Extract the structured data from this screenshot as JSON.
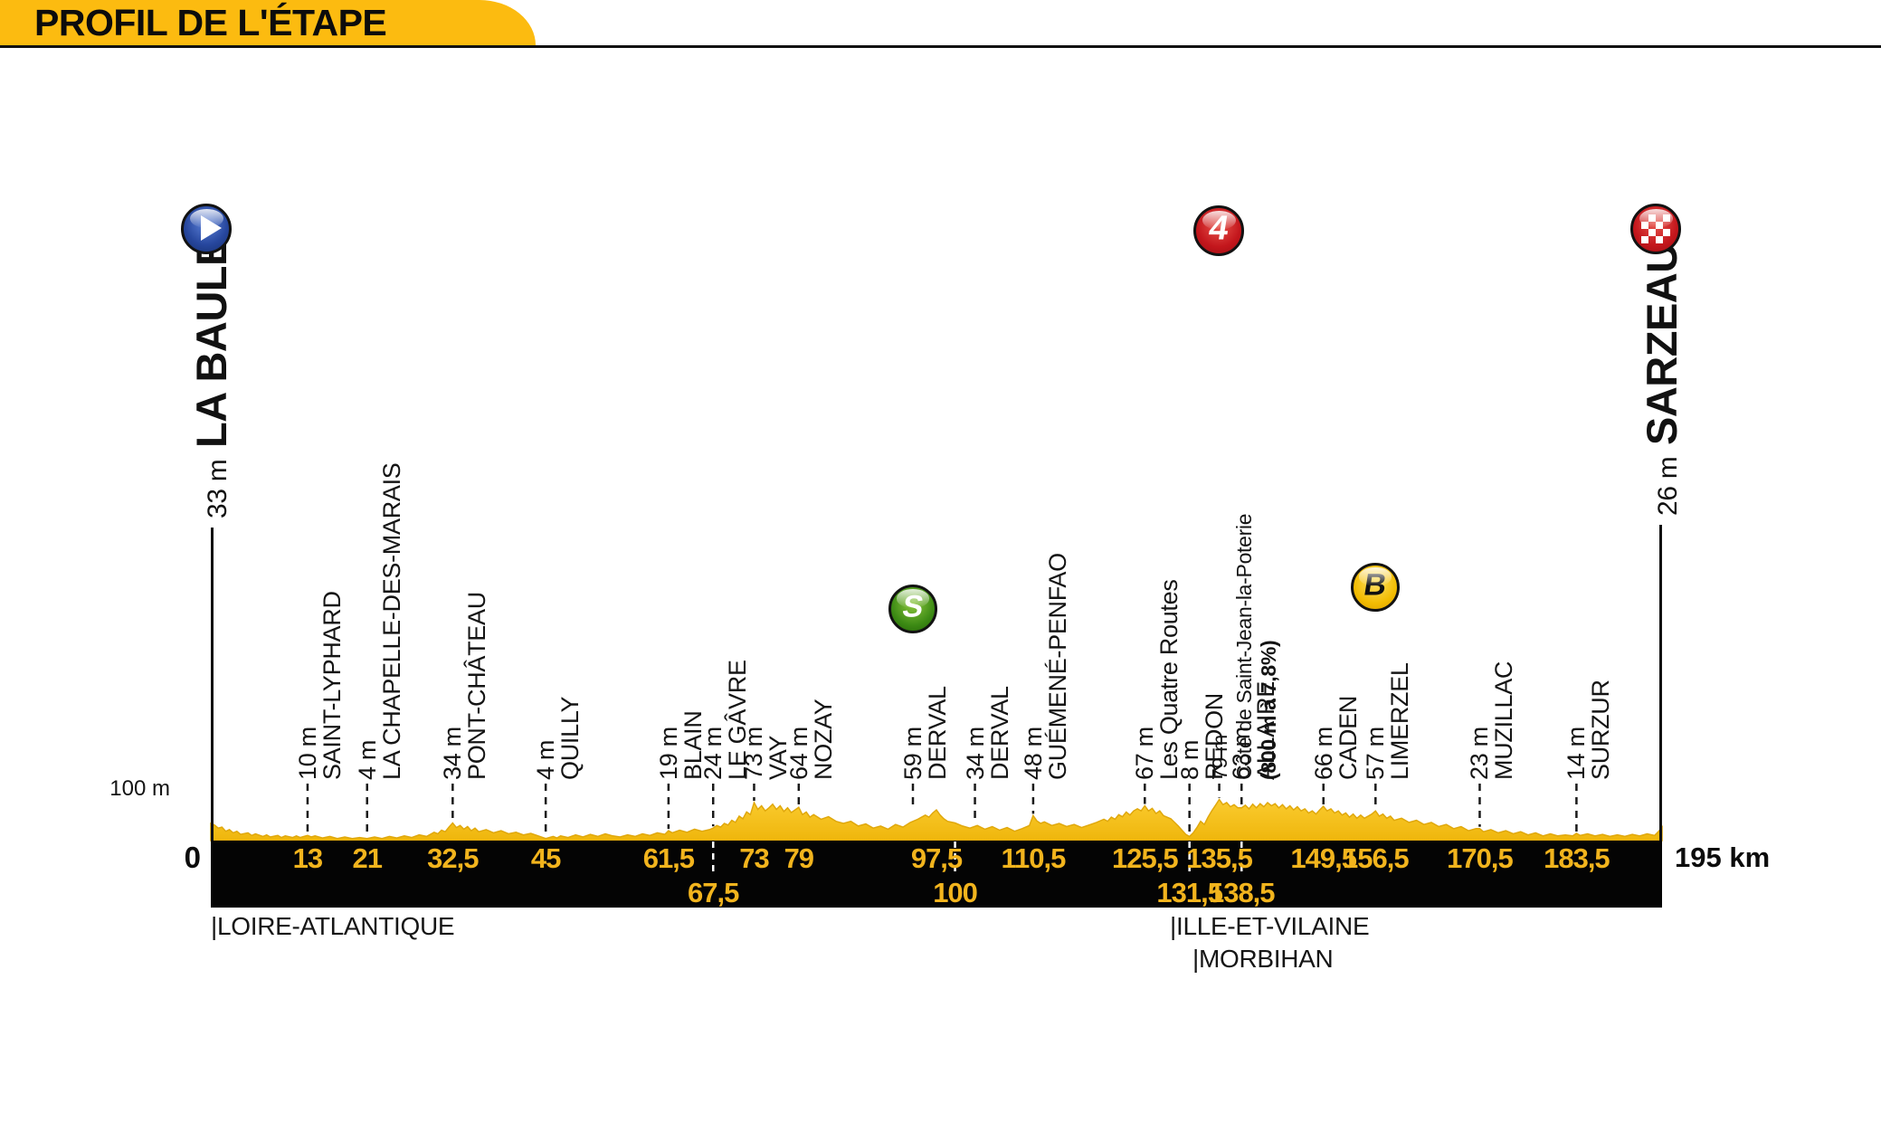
{
  "header": {
    "title": "PROFIL DE L'ÉTAPE"
  },
  "stage": {
    "start": {
      "altitude": "33 m",
      "name": "LA BAULE"
    },
    "finish": {
      "altitude": "26 m",
      "name": "SARZEAU"
    },
    "start_km_label": "0",
    "finish_km_label": "195 km",
    "elevation_scale_label": "100 m"
  },
  "icons": {
    "start": "play-icon",
    "finish": "checkered-flag-icon",
    "cat4_label": "4",
    "sprint_letter": "S",
    "bonus_letter": "B"
  },
  "departments": [
    {
      "label": "|LOIRE-ATLANTIQUE"
    },
    {
      "label": "|ILLE-ET-VILAINE"
    },
    {
      "label": "|MORBIHAN"
    }
  ],
  "colors": {
    "banner_yellow": "#FCBB10",
    "profile_gold": "#F7C11E",
    "km_text_yellow": "#F2B41D",
    "cat4_red": "#C3161C",
    "sprint_green": "#3C8A14",
    "bonus_yellow": "#F2BC02",
    "start_blue": "#27479E",
    "bar_black": "#040404"
  },
  "chart_data": {
    "type": "area",
    "title": "PROFIL DE L'ÉTAPE",
    "x_unit": "km",
    "y_unit": "m",
    "x_range": [
      0,
      195
    ],
    "total_distance_km": 195,
    "elevation_scale": {
      "label": "100 m",
      "meters": 100
    },
    "start": {
      "km": 0,
      "name": "LA BAULE",
      "elevation_m": 33
    },
    "finish": {
      "km": 195,
      "name": "SARZEAU",
      "elevation_m": 26
    },
    "waypoints": [
      {
        "km": 13,
        "km_label": "13",
        "row": 1,
        "altitude": "10 m",
        "elevation_m": 10,
        "name": "SAINT-LYPHARD"
      },
      {
        "km": 21,
        "km_label": "21",
        "row": 1,
        "altitude": "4 m",
        "elevation_m": 4,
        "name": "LA CHAPELLE-DES-MARAIS"
      },
      {
        "km": 32.5,
        "km_label": "32,5",
        "row": 1,
        "altitude": "34 m",
        "elevation_m": 34,
        "name": "PONT-CHÂTEAU"
      },
      {
        "km": 45,
        "km_label": "45",
        "row": 1,
        "altitude": "4 m",
        "elevation_m": 4,
        "name": "QUILLY"
      },
      {
        "km": 61.5,
        "km_label": "61,5",
        "row": 1,
        "altitude": "19 m",
        "elevation_m": 19,
        "name": "BLAIN"
      },
      {
        "km": 67.5,
        "km_label": "67,5",
        "row": 2,
        "altitude": "24 m",
        "elevation_m": 24,
        "name": "LE GÂVRE"
      },
      {
        "km": 73,
        "km_label": "73",
        "row": 1,
        "altitude": "73 m",
        "elevation_m": 73,
        "name": "VAY"
      },
      {
        "km": 79,
        "km_label": "79",
        "row": 1,
        "altitude": "64 m",
        "elevation_m": 64,
        "name": "NOZAY"
      },
      {
        "km": 97.5,
        "km_label": "97,5",
        "row": 1,
        "altitude": "59 m",
        "elevation_m": 59,
        "name": "DERVAL",
        "icon": "sprint",
        "label_dx": -26
      },
      {
        "km": 100,
        "km_label": "100",
        "row": 2,
        "altitude": "34 m",
        "elevation_m": 34,
        "name": "DERVAL",
        "label_dx": 22
      },
      {
        "km": 110.5,
        "km_label": "110,5",
        "row": 1,
        "altitude": "48 m",
        "elevation_m": 48,
        "name": "GUÉMENÉ-PENFAO"
      },
      {
        "km": 125.5,
        "km_label": "125,5",
        "row": 1,
        "altitude": "67 m",
        "elevation_m": 67,
        "name": "Les Quatre Routes"
      },
      {
        "km": 131.5,
        "km_label": "131,5",
        "row": 2,
        "altitude": "8 m",
        "elevation_m": 8,
        "name": "REDON"
      },
      {
        "km": 135.5,
        "km_label": "135,5",
        "row": 1,
        "altitude": "79 m",
        "elevation_m": 79,
        "name": "Côte de Saint-Jean-la-Poterie",
        "name_bold": " (800 m à 7,8%)",
        "icon": "cat4"
      },
      {
        "km": 138.5,
        "km_label": "138,5",
        "row": 2,
        "altitude": "63 m",
        "elevation_m": 63,
        "name": "ALLAIRE"
      },
      {
        "km": 149.5,
        "km_label": "149,5",
        "row": 1,
        "altitude": "66 m",
        "elevation_m": 66,
        "name": "CADEN"
      },
      {
        "km": 156.5,
        "km_label": "156,5",
        "row": 1,
        "altitude": "57 m",
        "elevation_m": 57,
        "name": "LIMERZEL",
        "icon": "bonus"
      },
      {
        "km": 170.5,
        "km_label": "170,5",
        "row": 1,
        "altitude": "23 m",
        "elevation_m": 23,
        "name": "MUZILLAC"
      },
      {
        "km": 183.5,
        "km_label": "183,5",
        "row": 1,
        "altitude": "14 m",
        "elevation_m": 14,
        "name": "SURZUR"
      }
    ],
    "profile_points": [
      [
        0,
        33
      ],
      [
        0.5,
        30
      ],
      [
        1,
        24
      ],
      [
        1.5,
        26
      ],
      [
        2,
        18
      ],
      [
        2.5,
        21
      ],
      [
        3,
        15
      ],
      [
        3.5,
        18
      ],
      [
        4,
        12
      ],
      [
        5,
        15
      ],
      [
        5.5,
        10
      ],
      [
        6,
        13
      ],
      [
        7,
        8
      ],
      [
        7.5,
        11
      ],
      [
        8,
        7
      ],
      [
        9,
        10
      ],
      [
        9.5,
        6
      ],
      [
        10,
        9
      ],
      [
        11,
        6
      ],
      [
        11.5,
        9
      ],
      [
        12,
        6
      ],
      [
        13,
        10
      ],
      [
        13.5,
        7
      ],
      [
        14,
        9
      ],
      [
        15,
        5
      ],
      [
        16,
        8
      ],
      [
        17,
        4
      ],
      [
        18,
        7
      ],
      [
        19,
        4
      ],
      [
        20,
        6
      ],
      [
        21,
        4
      ],
      [
        22,
        7
      ],
      [
        23,
        4
      ],
      [
        24,
        8
      ],
      [
        25,
        5
      ],
      [
        26,
        9
      ],
      [
        27,
        6
      ],
      [
        28,
        11
      ],
      [
        29,
        8
      ],
      [
        30,
        16
      ],
      [
        30.5,
        13
      ],
      [
        31,
        20
      ],
      [
        31.5,
        17
      ],
      [
        32,
        26
      ],
      [
        32.5,
        34
      ],
      [
        33,
        25
      ],
      [
        33.5,
        29
      ],
      [
        34,
        22
      ],
      [
        34.5,
        27
      ],
      [
        35,
        19
      ],
      [
        35.5,
        24
      ],
      [
        36,
        17
      ],
      [
        37,
        21
      ],
      [
        38,
        15
      ],
      [
        39,
        19
      ],
      [
        40,
        13
      ],
      [
        41,
        16
      ],
      [
        42,
        11
      ],
      [
        43,
        14
      ],
      [
        44,
        9
      ],
      [
        45,
        4
      ],
      [
        46,
        8
      ],
      [
        46.5,
        5
      ],
      [
        47,
        9
      ],
      [
        48,
        6
      ],
      [
        49,
        11
      ],
      [
        50,
        7
      ],
      [
        51,
        12
      ],
      [
        52,
        8
      ],
      [
        53,
        13
      ],
      [
        54,
        9
      ],
      [
        55,
        7
      ],
      [
        56,
        11
      ],
      [
        57,
        8
      ],
      [
        58,
        13
      ],
      [
        59,
        10
      ],
      [
        60,
        15
      ],
      [
        61,
        12
      ],
      [
        61.5,
        19
      ],
      [
        62,
        15
      ],
      [
        63,
        20
      ],
      [
        64,
        16
      ],
      [
        65,
        22
      ],
      [
        66,
        18
      ],
      [
        67,
        21
      ],
      [
        67.5,
        24
      ],
      [
        68,
        29
      ],
      [
        68.5,
        26
      ],
      [
        69,
        33
      ],
      [
        69.5,
        30
      ],
      [
        70,
        39
      ],
      [
        70.5,
        35
      ],
      [
        71,
        47
      ],
      [
        71.5,
        42
      ],
      [
        72,
        55
      ],
      [
        72.5,
        50
      ],
      [
        73,
        73
      ],
      [
        73.5,
        60
      ],
      [
        74,
        67
      ],
      [
        74.5,
        57
      ],
      [
        75,
        63
      ],
      [
        75.5,
        70
      ],
      [
        76,
        60
      ],
      [
        76.5,
        67
      ],
      [
        77,
        56
      ],
      [
        77.5,
        63
      ],
      [
        78,
        54
      ],
      [
        78.5,
        59
      ],
      [
        79,
        64
      ],
      [
        79.5,
        50
      ],
      [
        80,
        55
      ],
      [
        80.5,
        45
      ],
      [
        81,
        50
      ],
      [
        82,
        41
      ],
      [
        83,
        46
      ],
      [
        84,
        37
      ],
      [
        85,
        33
      ],
      [
        86,
        37
      ],
      [
        87,
        28
      ],
      [
        88,
        32
      ],
      [
        89,
        24
      ],
      [
        90,
        28
      ],
      [
        91,
        22
      ],
      [
        92,
        31
      ],
      [
        93,
        26
      ],
      [
        94,
        35
      ],
      [
        95,
        41
      ],
      [
        96,
        49
      ],
      [
        96.5,
        45
      ],
      [
        97,
        53
      ],
      [
        97.5,
        59
      ],
      [
        98,
        49
      ],
      [
        98.5,
        42
      ],
      [
        99,
        37
      ],
      [
        100,
        34
      ],
      [
        101,
        28
      ],
      [
        102,
        24
      ],
      [
        103,
        29
      ],
      [
        104,
        22
      ],
      [
        105,
        27
      ],
      [
        106,
        20
      ],
      [
        107,
        25
      ],
      [
        108,
        18
      ],
      [
        109,
        23
      ],
      [
        110,
        29
      ],
      [
        110.5,
        48
      ],
      [
        111,
        38
      ],
      [
        111.5,
        33
      ],
      [
        112,
        36
      ],
      [
        113,
        29
      ],
      [
        114,
        33
      ],
      [
        115,
        27
      ],
      [
        116,
        31
      ],
      [
        117,
        25
      ],
      [
        118,
        30
      ],
      [
        119,
        35
      ],
      [
        120,
        41
      ],
      [
        120.5,
        37
      ],
      [
        121,
        45
      ],
      [
        121.5,
        41
      ],
      [
        122,
        50
      ],
      [
        122.5,
        46
      ],
      [
        123,
        55
      ],
      [
        123.5,
        49
      ],
      [
        124,
        57
      ],
      [
        124.5,
        61
      ],
      [
        125,
        57
      ],
      [
        125.5,
        67
      ],
      [
        126,
        57
      ],
      [
        126.5,
        62
      ],
      [
        127,
        52
      ],
      [
        127.5,
        57
      ],
      [
        128,
        48
      ],
      [
        129,
        42
      ],
      [
        129.5,
        35
      ],
      [
        130,
        28
      ],
      [
        130.5,
        20
      ],
      [
        131,
        12
      ],
      [
        131.5,
        8
      ],
      [
        132,
        15
      ],
      [
        132.5,
        25
      ],
      [
        133,
        37
      ],
      [
        133.5,
        31
      ],
      [
        134,
        45
      ],
      [
        134.5,
        57
      ],
      [
        135,
        68
      ],
      [
        135.5,
        79
      ],
      [
        136,
        69
      ],
      [
        136.5,
        73
      ],
      [
        137,
        65
      ],
      [
        137.5,
        69
      ],
      [
        138,
        63
      ],
      [
        138.5,
        63
      ],
      [
        139,
        68
      ],
      [
        139.5,
        61
      ],
      [
        140,
        70
      ],
      [
        140.5,
        63
      ],
      [
        141,
        71
      ],
      [
        141.5,
        65
      ],
      [
        142,
        73
      ],
      [
        142.5,
        67
      ],
      [
        143,
        71
      ],
      [
        143.5,
        63
      ],
      [
        144,
        69
      ],
      [
        144.5,
        61
      ],
      [
        145,
        67
      ],
      [
        145.5,
        59
      ],
      [
        146,
        65
      ],
      [
        146.5,
        57
      ],
      [
        147,
        61
      ],
      [
        147.5,
        53
      ],
      [
        148,
        57
      ],
      [
        148.5,
        51
      ],
      [
        149,
        59
      ],
      [
        149.5,
        66
      ],
      [
        150,
        57
      ],
      [
        150.5,
        61
      ],
      [
        151,
        53
      ],
      [
        151.5,
        57
      ],
      [
        152,
        49
      ],
      [
        152.5,
        53
      ],
      [
        153,
        45
      ],
      [
        153.5,
        51
      ],
      [
        154,
        43
      ],
      [
        154.5,
        49
      ],
      [
        155,
        43
      ],
      [
        155.5,
        47
      ],
      [
        156,
        51
      ],
      [
        156.5,
        57
      ],
      [
        157,
        47
      ],
      [
        157.5,
        51
      ],
      [
        158,
        43
      ],
      [
        158.5,
        47
      ],
      [
        159,
        39
      ],
      [
        160,
        43
      ],
      [
        161,
        35
      ],
      [
        162,
        39
      ],
      [
        163,
        31
      ],
      [
        164,
        35
      ],
      [
        165,
        27
      ],
      [
        166,
        31
      ],
      [
        167,
        23
      ],
      [
        168,
        27
      ],
      [
        169,
        19
      ],
      [
        170,
        23
      ],
      [
        170.5,
        23
      ],
      [
        171,
        17
      ],
      [
        172,
        21
      ],
      [
        173,
        15
      ],
      [
        174,
        19
      ],
      [
        175,
        13
      ],
      [
        176,
        17
      ],
      [
        177,
        11
      ],
      [
        178,
        15
      ],
      [
        179,
        9
      ],
      [
        180,
        13
      ],
      [
        181,
        9
      ],
      [
        182,
        11
      ],
      [
        183,
        9
      ],
      [
        183.5,
        14
      ],
      [
        184,
        10
      ],
      [
        185,
        13
      ],
      [
        186,
        9
      ],
      [
        187,
        12
      ],
      [
        188,
        8
      ],
      [
        189,
        11
      ],
      [
        190,
        8
      ],
      [
        191,
        12
      ],
      [
        192,
        9
      ],
      [
        193,
        13
      ],
      [
        194,
        10
      ],
      [
        194.5,
        17
      ],
      [
        195,
        26
      ]
    ]
  }
}
